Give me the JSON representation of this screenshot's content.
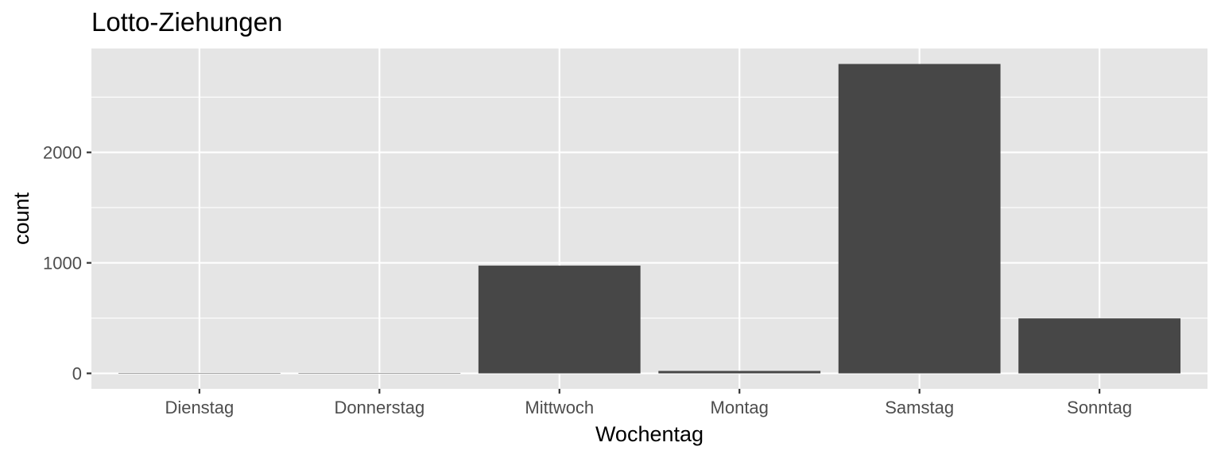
{
  "chart_data": {
    "type": "bar",
    "title": "Lotto-Ziehungen",
    "xlabel": "Wochentag",
    "ylabel": "count",
    "categories": [
      "Dienstag",
      "Donnerstag",
      "Mittwoch",
      "Montag",
      "Samstag",
      "Sonntag"
    ],
    "values": [
      3,
      3,
      975,
      22,
      2800,
      498
    ],
    "ylim": [
      -140,
      2940
    ],
    "yticks": [
      0,
      1000,
      2000
    ],
    "yticks_minor": [
      500,
      1500,
      2500
    ],
    "grid": true,
    "legend": "none",
    "colors": {
      "bar": "#474747",
      "panel": "#e5e5e5",
      "grid": "#ffffff",
      "tick_text": "#4d4d4d"
    }
  }
}
